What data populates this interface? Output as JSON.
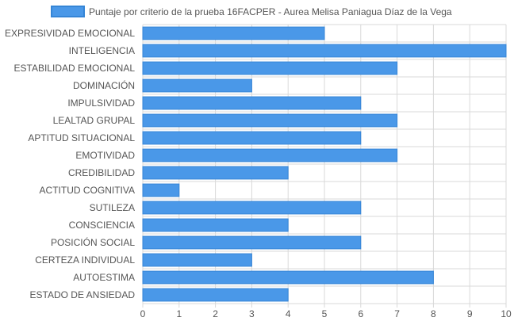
{
  "colors": {
    "bar_fill": "#4a98e8",
    "bar_stroke": "#3585d6",
    "grid": "#d9d9d9",
    "text": "#555555"
  },
  "chart_data": {
    "type": "bar",
    "orientation": "horizontal",
    "categories": [
      "EXPRESIVIDAD EMOCIONAL",
      "INTELIGENCIA",
      "ESTABILIDAD EMOCIONAL",
      "DOMINACIÓN",
      "IMPULSIVIDAD",
      "LEALTAD GRUPAL",
      "APTITUD SITUACIONAL",
      "EMOTIVIDAD",
      "CREDIBILIDAD",
      "ACTITUD COGNITIVA",
      "SUTILEZA",
      "CONSCIENCIA",
      "POSICIÓN SOCIAL",
      "CERTEZA INDIVIDUAL",
      "AUTOESTIMA",
      "ESTADO DE ANSIEDAD"
    ],
    "series": [
      {
        "name": "Puntaje por criterio de la prueba 16FACPER - Aurea Melisa Paniagua Díaz de la Vega",
        "values": [
          5,
          10,
          7,
          3,
          6,
          7,
          6,
          7,
          4,
          1,
          6,
          4,
          6,
          3,
          8,
          4
        ]
      }
    ],
    "xlim": [
      0,
      10
    ],
    "xticks": [
      "0",
      "1",
      "2",
      "3",
      "4",
      "5",
      "6",
      "7",
      "8",
      "9",
      "10"
    ],
    "grid": true,
    "legend_position": "top"
  }
}
